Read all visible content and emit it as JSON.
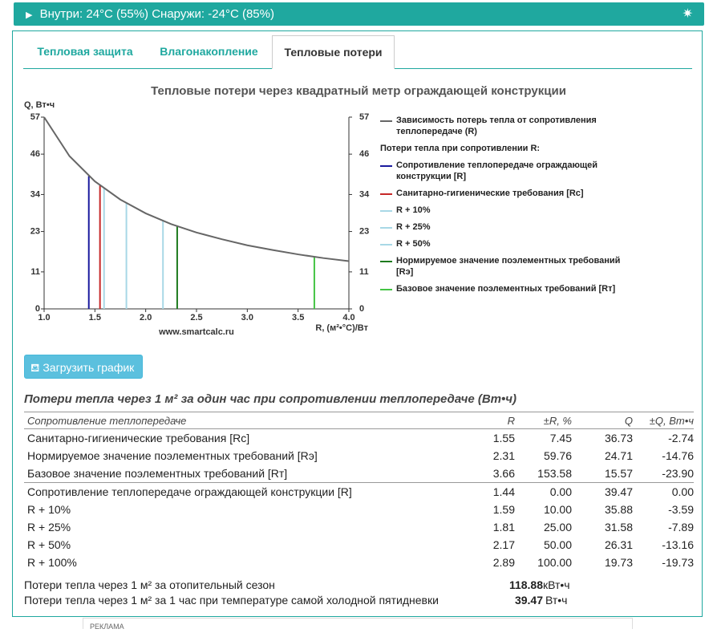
{
  "header": {
    "title": "Внутри: 24°C (55%) Снаружи: -24°C (85%)"
  },
  "tabs": [
    "Тепловая защита",
    "Влагонакопление",
    "Тепловые потери"
  ],
  "active_tab": 2,
  "chart_data": {
    "type": "line",
    "title": "Тепловые потери через квадратный метр ограждающей конструкции",
    "y_label": "Q, Вт•ч",
    "x_label": "R, (м²•°С)/Вт",
    "watermark": "www.smartcalc.ru",
    "xlim": [
      1,
      4
    ],
    "xticks": [
      {
        "value": 1,
        "label": "1.0"
      },
      1.5,
      {
        "value": 2,
        "label": "2.0"
      },
      2.5,
      {
        "value": 3,
        "label": "3.0"
      },
      3.5,
      {
        "value": 4,
        "label": "4.0"
      }
    ],
    "ylim": [
      0,
      57
    ],
    "yticks": [
      0,
      11,
      23,
      34,
      46,
      57
    ],
    "series": [
      {
        "name": "Зависимость потерь тепла от сопротивления теплопередаче (R)",
        "color": "#666666",
        "x": [
          1,
          1.25,
          1.5,
          1.75,
          2,
          2.25,
          2.5,
          2.75,
          3,
          3.25,
          3.5,
          3.75,
          4
        ],
        "values": [
          57,
          45.4,
          37.9,
          32.5,
          28.4,
          25.2,
          22.7,
          20.7,
          18.9,
          17.5,
          16.2,
          15.1,
          14.2
        ]
      }
    ],
    "legend_subtitle": "Потери тепла при сопротивлении R:",
    "markers": [
      {
        "name": "Сопротивление теплопередаче ограждающей конструкции [R]",
        "color": "#1a1a9e",
        "x": 1.44,
        "value": 39.47
      },
      {
        "name": "Санитарно-гигиенические требования [Rс]",
        "color": "#c62828",
        "x": 1.55,
        "value": 36.73
      },
      {
        "name": "R + 10%",
        "color": "#a8d8e6",
        "x": 1.59,
        "value": 35.88
      },
      {
        "name": "R + 25%",
        "color": "#a8d8e6",
        "x": 1.81,
        "value": 31.58
      },
      {
        "name": "R + 50%",
        "color": "#a8d8e6",
        "x": 2.17,
        "value": 26.31
      },
      {
        "name": "Нормируемое значение поэлементных требований [Rэ]",
        "color": "#1e7a1e",
        "x": 2.31,
        "value": 24.71
      },
      {
        "name": "Базовое значение поэлементных требований [Rт]",
        "color": "#44c444",
        "x": 3.66,
        "value": 15.57
      }
    ]
  },
  "button": "Загрузить график",
  "table": {
    "caption": "Потери тепла через 1 м² за один час при сопротивлении теплопередаче (Вт•ч)",
    "columns": [
      "Сопротивление теплопередаче",
      "R",
      "±R, %",
      "Q",
      "±Q, Вт•ч"
    ],
    "row_groups": [
      [
        [
          "Санитарно-гигиенические требования [Rс]",
          "1.55",
          "7.45",
          "36.73",
          "-2.74"
        ],
        [
          "Нормируемое значение поэлементных требований [Rэ]",
          "2.31",
          "59.76",
          "24.71",
          "-14.76"
        ],
        [
          "Базовое значение поэлементных требований [Rт]",
          "3.66",
          "153.58",
          "15.57",
          "-23.90"
        ]
      ],
      [
        [
          "Сопротивление теплопередаче ограждающей конструкции [R]",
          "1.44",
          "0.00",
          "39.47",
          "0.00"
        ],
        [
          "R + 10%",
          "1.59",
          "10.00",
          "35.88",
          "-3.59"
        ],
        [
          "R + 25%",
          "1.81",
          "25.00",
          "31.58",
          "-7.89"
        ],
        [
          "R + 50%",
          "2.17",
          "50.00",
          "26.31",
          "-13.16"
        ],
        [
          "R + 100%",
          "2.89",
          "100.00",
          "19.73",
          "-19.73"
        ]
      ]
    ]
  },
  "summary": [
    {
      "label": "Потери тепла через 1 м² за отопительный сезон",
      "value": "118.88",
      "unit": "кВт•ч"
    },
    {
      "label": "Потери тепла через 1 м² за 1 час при температуре самой холодной пятидневки",
      "value": "39.47",
      "unit": "Вт•ч"
    }
  ],
  "ad_label": "РЕКЛАМА"
}
